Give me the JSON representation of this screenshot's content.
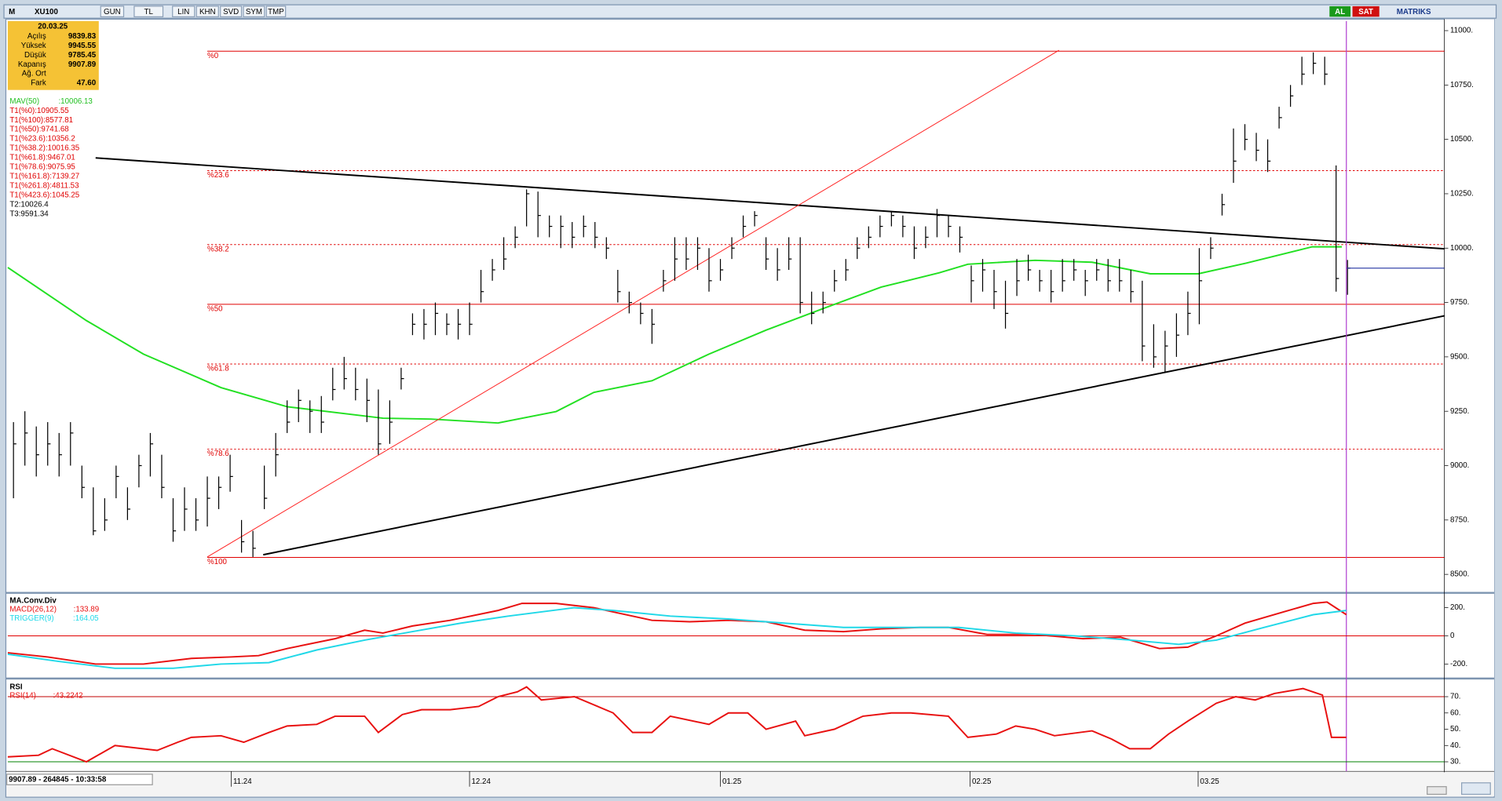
{
  "toolbar": {
    "logo": "M",
    "symbol": "XU100",
    "buttons": [
      "GUN",
      "TL",
      "LIN",
      "KHN",
      "SVD",
      "SYM",
      "TMP"
    ],
    "buy": "AL",
    "sell": "SAT",
    "brand": "MATRIKS"
  },
  "info_box": {
    "date": "20.03.25",
    "rows": [
      {
        "label": "Açılış",
        "value": "9839.83"
      },
      {
        "label": "Yüksek",
        "value": "9945.55"
      },
      {
        "label": "Düşük",
        "value": "9785.45"
      },
      {
        "label": "Kapanış",
        "value": "9907.89"
      },
      {
        "label": "Ağ. Ort"
      },
      {
        "label": "Fark",
        "value": "47.60"
      }
    ]
  },
  "status_bar": "9907.89 - 264845 - 10:33:58",
  "chart_data": [
    {
      "type": "ohlc",
      "xlim": [
        -0.5,
        125.5
      ],
      "ylim": [
        8426,
        11044
      ],
      "yticks": [
        {
          "value": 11000,
          "label": "11000."
        },
        {
          "value": 10750,
          "label": "10750."
        },
        {
          "value": 10500,
          "label": "10500."
        },
        {
          "value": 10250,
          "label": "10250."
        },
        {
          "value": 10000,
          "label": "10000."
        },
        {
          "value": 9750,
          "label": "9750."
        },
        {
          "value": 9500,
          "label": "9500."
        },
        {
          "value": 9250,
          "label": "9250."
        },
        {
          "value": 9000,
          "label": "9000."
        },
        {
          "value": 8750,
          "label": "8750."
        },
        {
          "value": 8500,
          "label": "8500."
        }
      ],
      "xticks": [
        {
          "value": 19.1,
          "label": "11.24"
        },
        {
          "value": 40,
          "label": "12.24"
        },
        {
          "value": 62,
          "label": "01.25"
        },
        {
          "value": 83.9,
          "label": "02.25"
        },
        {
          "value": 103.9,
          "label": "03.25"
        }
      ],
      "bar_color": "#000000",
      "high": [
        9200,
        9250,
        9180,
        9200,
        9150,
        9200,
        9000,
        8900,
        8850,
        9000,
        8900,
        9050,
        9150,
        9050,
        8850,
        8900,
        8850,
        8950,
        8950,
        9050,
        8750,
        8700,
        9000,
        9150,
        9300,
        9350,
        9300,
        9320,
        9450,
        9500,
        9450,
        9400,
        9350,
        9300,
        9450,
        9700,
        9720,
        9750,
        9700,
        9720,
        9750,
        9900,
        9950,
        10050,
        10100,
        10270,
        10260,
        10150,
        10150,
        10120,
        10150,
        10120,
        10050,
        9900,
        9800,
        9750,
        9720,
        9900,
        10050,
        10050,
        10050,
        10000,
        9950,
        10050,
        10150,
        10170,
        10050,
        10000,
        10050,
        10050,
        9800,
        9800,
        9900,
        9950,
        10050,
        10100,
        10150,
        10170,
        10150,
        10100,
        10100,
        10180,
        10150,
        10100,
        9920,
        9950,
        9900,
        9850,
        9950,
        9970,
        9900,
        9900,
        9950,
        9950,
        9900,
        9950,
        9950,
        9950,
        9900,
        9850,
        9650,
        9620,
        9700,
        9800,
        10000,
        10050,
        10250,
        10550,
        10570,
        10530,
        10500,
        10650,
        10750,
        10880,
        10900,
        10880,
        10380,
        9945.55
      ],
      "low": [
        8850,
        9000,
        8950,
        9000,
        8950,
        9000,
        8850,
        8680,
        8700,
        8850,
        8750,
        8900,
        8950,
        8850,
        8650,
        8700,
        8700,
        8720,
        8800,
        8880,
        8600,
        8580,
        8800,
        8950,
        9150,
        9200,
        9150,
        9150,
        9300,
        9350,
        9300,
        9200,
        9050,
        9100,
        9350,
        9600,
        9580,
        9600,
        9600,
        9580,
        9600,
        9750,
        9850,
        9900,
        10000,
        10100,
        10050,
        10050,
        10000,
        10000,
        10050,
        10000,
        9950,
        9750,
        9700,
        9650,
        9560,
        9800,
        9850,
        9900,
        9900,
        9800,
        9850,
        9950,
        10050,
        10100,
        9900,
        9850,
        9900,
        9700,
        9650,
        9700,
        9800,
        9850,
        9950,
        10000,
        10050,
        10100,
        10050,
        9950,
        10000,
        10050,
        10050,
        9980,
        9750,
        9800,
        9720,
        9630,
        9780,
        9850,
        9800,
        9750,
        9800,
        9850,
        9780,
        9850,
        9800,
        9800,
        9750,
        9480,
        9450,
        9430,
        9500,
        9600,
        9650,
        9950,
        10150,
        10300,
        10450,
        10400,
        10350,
        10550,
        10650,
        10750,
        10800,
        10750,
        9800,
        9785.45
      ],
      "close": [
        9100,
        9150,
        9050,
        9100,
        9050,
        9150,
        8900,
        8700,
        8750,
        8950,
        8800,
        9000,
        9100,
        8900,
        8700,
        8800,
        8750,
        8850,
        8900,
        8950,
        8650,
        8620,
        8850,
        9050,
        9200,
        9300,
        9250,
        9200,
        9350,
        9400,
        9350,
        9300,
        9100,
        9200,
        9400,
        9650,
        9650,
        9700,
        9650,
        9650,
        9650,
        9800,
        9900,
        9950,
        10050,
        10250,
        10150,
        10100,
        10100,
        10050,
        10100,
        10050,
        10000,
        9800,
        9750,
        9700,
        9650,
        9850,
        9950,
        9950,
        10000,
        9850,
        9900,
        10000,
        10100,
        10150,
        9950,
        9900,
        9950,
        9750,
        9700,
        9750,
        9850,
        9900,
        10000,
        10050,
        10100,
        10150,
        10100,
        10000,
        10050,
        10150,
        10100,
        10050,
        9850,
        9900,
        9800,
        9700,
        9850,
        9900,
        9850,
        9800,
        9850,
        9900,
        9850,
        9900,
        9850,
        9850,
        9800,
        9550,
        9500,
        9550,
        9600,
        9700,
        9850,
        10000,
        10200,
        10400,
        10500,
        10450,
        10400,
        10600,
        10700,
        10800,
        10850,
        10800,
        9860.29,
        9907.89
      ],
      "lines": [
        {
          "color": "#22e022",
          "width": 1.6,
          "x": [
            -0.5,
            6.4,
            11.4,
            18.2,
            24,
            32.4,
            36.6,
            42.5,
            47.6,
            50.9,
            56,
            61,
            66,
            71.1,
            76.1,
            81.2,
            83.7,
            89.6,
            94.6,
            99.7,
            103.9,
            108.1,
            113.9,
            116.5
          ],
          "values": [
            9911,
            9667,
            9513,
            9359,
            9271,
            9218,
            9214,
            9196,
            9249,
            9337,
            9390,
            9513,
            9623,
            9724,
            9821,
            9887,
            9926,
            9944,
            9935,
            9882,
            9882,
            9931,
            10006,
            10006
          ]
        },
        {
          "color": "#000000",
          "width": 1.6,
          "x": [
            7.2,
            125.5
          ],
          "values": [
            10415,
            9997
          ]
        },
        {
          "color": "#000000",
          "width": 1.6,
          "x": [
            21.9,
            125.5
          ],
          "values": [
            8590,
            9689
          ]
        },
        {
          "color": "#ff2020",
          "width": 0.8,
          "x": [
            17,
            91.7
          ],
          "values": [
            8580,
            10910
          ]
        }
      ],
      "level_start_x": 17,
      "level_color": "#e00000",
      "levels": [
        {
          "label": "%0",
          "value": 10905.55,
          "style": "solid"
        },
        {
          "label": "%23.6",
          "value": 10356.2,
          "style": "dotted"
        },
        {
          "label": "%38.2",
          "value": 10016.35,
          "style": "dotted"
        },
        {
          "label": "%50",
          "value": 9741.68,
          "style": "solid"
        },
        {
          "label": "%61.8",
          "value": 9467.01,
          "style": "dotted"
        },
        {
          "label": "%78.6",
          "value": 9075.95,
          "style": "dotted"
        },
        {
          "label": "%100",
          "value": 8577.81,
          "style": "solid"
        }
      ],
      "cursor_x": 116.9,
      "cursor_color": "#b040d0",
      "last_color": "#2030a0",
      "legend": [
        {
          "text": "MAV(50)         :10006.13",
          "color": "#22c022"
        },
        {
          "text": "T1(%0):10905.55",
          "color": "#e00000"
        },
        {
          "text": "T1(%100):8577.81",
          "color": "#e00000"
        },
        {
          "text": "T1(%50):9741.68",
          "color": "#e00000"
        },
        {
          "text": "T1(%23.6):10356.2",
          "color": "#e00000"
        },
        {
          "text": "T1(%38.2):10016.35",
          "color": "#e00000"
        },
        {
          "text": "T1(%61.8):9467.01",
          "color": "#e00000"
        },
        {
          "text": "T1(%78.6):9075.95",
          "color": "#e00000"
        },
        {
          "text": "T1(%161.8):7139.27",
          "color": "#e00000"
        },
        {
          "text": "T1(%261.8):4811.53",
          "color": "#e00000"
        },
        {
          "text": "T1(%423.6):1045.25",
          "color": "#e00000"
        },
        {
          "text": "T2:10026.4",
          "color": "#000000"
        },
        {
          "text": "T3:9591.34",
          "color": "#000000"
        }
      ]
    },
    {
      "type": "line",
      "title": "MA.Conv.Div",
      "xlim": [
        -0.5,
        125.5
      ],
      "ylim": [
        -282,
        288
      ],
      "yticks": [
        {
          "value": 200,
          "label": "200."
        },
        0,
        {
          "value": -200,
          "label": "-200."
        }
      ],
      "levels": [
        {
          "value": 0,
          "color": "#e00000"
        }
      ],
      "series": [
        {
          "name": "MACD(26,12)        :133.89",
          "color": "#e81010",
          "x": [
            -0.5,
            3,
            7.2,
            11.4,
            15.6,
            19,
            21.5,
            24,
            28.2,
            30.8,
            32.4,
            35,
            38.3,
            42.5,
            44.6,
            47.6,
            50.9,
            56,
            59.3,
            62.7,
            66,
            69.4,
            72.8,
            76.1,
            79.5,
            82,
            85.4,
            89.6,
            93.8,
            97.1,
            100.5,
            103,
            105.5,
            108,
            111.4,
            114,
            115.2,
            116.9
          ],
          "values": [
            -120,
            -150,
            -200,
            -200,
            -160,
            -150,
            -140,
            -90,
            -20,
            40,
            20,
            70,
            110,
            180,
            230,
            230,
            200,
            110,
            100,
            110,
            100,
            40,
            30,
            50,
            60,
            60,
            10,
            10,
            -20,
            -10,
            -90,
            -80,
            0,
            90,
            170,
            230,
            240,
            150
          ]
        },
        {
          "name": "TRIGGER(9)         :164.05",
          "color": "#20d8e8",
          "x": [
            -0.5,
            3.9,
            8.9,
            14,
            18.2,
            22.4,
            26.6,
            30.8,
            35,
            39.2,
            43.4,
            49.2,
            52.6,
            57.6,
            62.7,
            67.7,
            72.8,
            77.8,
            82.9,
            87.9,
            93,
            98,
            102.2,
            105.5,
            109.7,
            114,
            116.9
          ],
          "values": [
            -130,
            -180,
            -230,
            -230,
            -200,
            -190,
            -100,
            -30,
            30,
            90,
            140,
            200,
            180,
            140,
            120,
            90,
            60,
            60,
            60,
            20,
            0,
            -30,
            -60,
            -30,
            60,
            150,
            180
          ]
        }
      ]
    },
    {
      "type": "line",
      "title": "RSI",
      "xlim": [
        -0.5,
        125.5
      ],
      "ylim": [
        25.9,
        79.4
      ],
      "yticks": [
        {
          "value": 70,
          "label": "70."
        },
        {
          "value": 60,
          "label": "60."
        },
        {
          "value": 50,
          "label": "50."
        },
        {
          "value": 40,
          "label": "40."
        },
        {
          "value": 30,
          "label": "30."
        }
      ],
      "levels": [
        {
          "value": 70,
          "color": "#c00000"
        },
        {
          "value": 30,
          "color": "#008000"
        }
      ],
      "series": [
        {
          "name": "RSI(14)        :43.2242",
          "color": "#e81010",
          "x": [
            -0.5,
            2.2,
            3.4,
            6.4,
            8.9,
            12.6,
            14.4,
            15.6,
            18.2,
            20.2,
            22.4,
            24,
            26.6,
            28.2,
            30.8,
            32,
            34.1,
            35.8,
            38.3,
            40.8,
            42.5,
            44.2,
            45,
            46.3,
            49.2,
            52.6,
            54.3,
            56,
            57.6,
            61,
            62.7,
            64.4,
            66,
            68.6,
            69.4,
            72,
            74.5,
            77,
            78.7,
            82,
            83.7,
            86.2,
            87.9,
            89.6,
            91.3,
            94.6,
            96.3,
            97.9,
            99.7,
            101.3,
            103,
            105.5,
            107.2,
            108.9,
            110.6,
            113.1,
            114.8,
            115.6,
            116.9
          ],
          "values": [
            33,
            34,
            38,
            30,
            40,
            37,
            42,
            45,
            46,
            42,
            48,
            52,
            53,
            58,
            58,
            48,
            59,
            62,
            62,
            64,
            70,
            73,
            76,
            68,
            70,
            60,
            48,
            48,
            58,
            53,
            60,
            60,
            50,
            55,
            46,
            50,
            58,
            60,
            60,
            58,
            45,
            47,
            52,
            50,
            46,
            49,
            44,
            38,
            38,
            47,
            55,
            66,
            70,
            68,
            72,
            75,
            71,
            45,
            45
          ]
        }
      ]
    }
  ]
}
